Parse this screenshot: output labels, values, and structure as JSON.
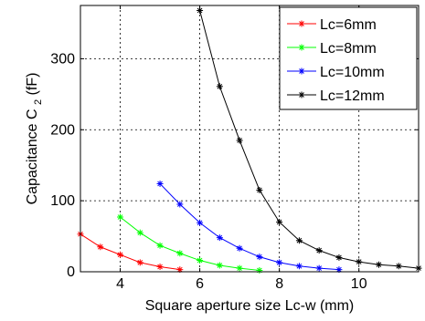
{
  "chart_data": {
    "type": "line",
    "xlabel": "Square aperture size Lc-w (mm)",
    "ylabel_main": "Capacitance C",
    "ylabel_sub": "2",
    "ylabel_unit": " (fF)",
    "xlim": [
      3,
      11.5
    ],
    "ylim": [
      0,
      375
    ],
    "xticks": [
      4,
      6,
      8,
      10
    ],
    "yticks": [
      0,
      100,
      200,
      300
    ],
    "grid": true,
    "legend_position": "top-right",
    "series": [
      {
        "name": "Lc=6mm",
        "color": "#ff0000",
        "marker": "asterisk",
        "x": [
          3,
          3.5,
          4,
          4.5,
          5,
          5.5
        ],
        "y": [
          53,
          35,
          24,
          13,
          7,
          3
        ]
      },
      {
        "name": "Lc=8mm",
        "color": "#00ff00",
        "marker": "asterisk",
        "x": [
          4,
          4.5,
          5,
          5.5,
          6,
          6.5,
          7,
          7.5
        ],
        "y": [
          77,
          55,
          37,
          26,
          16,
          9,
          5,
          2
        ]
      },
      {
        "name": "Lc=10mm",
        "color": "#0000ff",
        "marker": "asterisk",
        "x": [
          5,
          5.5,
          6,
          6.5,
          7,
          7.5,
          8,
          8.5,
          9,
          9.5
        ],
        "y": [
          124,
          95,
          69,
          48,
          33,
          21,
          13,
          8,
          5,
          3
        ]
      },
      {
        "name": "Lc=12mm",
        "color": "#000000",
        "marker": "asterisk",
        "x": [
          6,
          6.5,
          7,
          7.5,
          8,
          8.5,
          9,
          9.5,
          10,
          10.5,
          11,
          11.5
        ],
        "y": [
          368,
          261,
          185,
          115,
          70,
          44,
          30,
          20,
          14,
          10,
          8,
          5
        ]
      }
    ]
  }
}
